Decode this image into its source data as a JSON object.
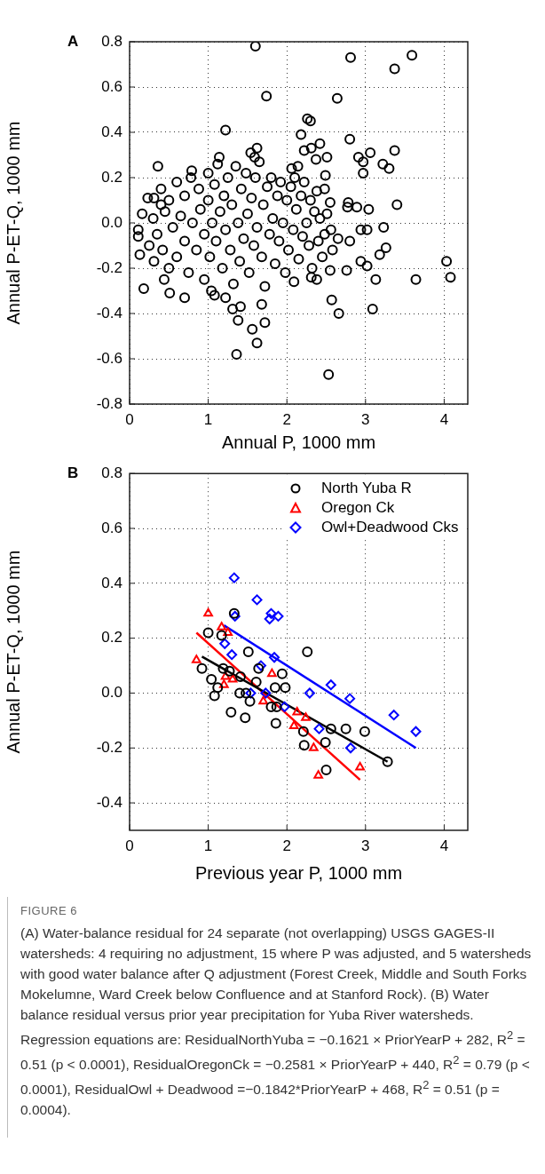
{
  "chart_data": [
    {
      "type": "scatter",
      "title": "A",
      "xlabel": "Annual P, 1000 mm",
      "ylabel": "Annual P-ET-Q, 1000 mm",
      "color": "#000000",
      "marker": "circle",
      "grid": true,
      "legend": false,
      "xlim": [
        0,
        4.3
      ],
      "xticks": [
        0,
        1,
        2,
        3,
        4
      ],
      "ylim": [
        -0.8,
        0.8
      ],
      "yticks": [
        -0.8,
        -0.6,
        -0.4,
        -0.2,
        {
          "value": 0,
          "label": "0.0"
        },
        0.2,
        0.4,
        0.6,
        0.8
      ],
      "x": [
        0.25,
        0.3,
        0.35,
        0.4,
        0.42,
        0.45,
        0.5,
        0.5,
        0.55,
        0.6,
        0.6,
        0.65,
        0.7,
        0.7,
        0.75,
        0.78,
        0.8,
        0.85,
        0.88,
        0.9,
        0.95,
        0.95,
        1.0,
        1.0,
        1.02,
        1.05,
        1.08,
        1.1,
        1.12,
        1.15,
        1.18,
        1.2,
        1.22,
        1.25,
        1.28,
        1.3,
        1.32,
        1.35,
        1.38,
        1.4,
        1.42,
        1.45,
        1.48,
        1.5,
        1.52,
        1.55,
        1.58,
        1.6,
        1.62,
        1.65,
        1.68,
        1.7,
        1.72,
        1.75,
        1.78,
        1.8,
        1.82,
        1.85,
        1.88,
        1.9,
        1.92,
        1.95,
        1.98,
        2.0,
        2.02,
        2.05,
        2.08,
        2.1,
        2.12,
        2.15,
        2.18,
        2.2,
        2.22,
        2.25,
        2.28,
        2.3,
        2.32,
        2.35,
        2.38,
        2.4,
        2.42,
        2.45,
        1.6,
        1.74,
        1.22,
        1.54,
        1.62,
        1.59,
        0.36,
        0.79,
        1.14,
        0.18,
        0.51,
        0.7,
        1.22,
        1.31,
        1.41,
        1.38,
        1.56,
        1.72,
        1.62,
        1.36,
        1.04,
        1.08,
        1.68,
        0.11,
        0.11,
        0.16,
        0.23,
        0.31,
        0.4,
        0.31,
        0.13,
        0.44,
        3.59,
        3.37,
        2.81,
        2.64,
        2.26,
        2.3,
        2.18,
        2.8,
        3.37,
        3.06,
        2.91,
        2.97,
        2.97,
        3.22,
        3.3,
        3.4,
        3.04,
        2.89,
        3.23,
        3.02,
        2.94,
        2.8,
        3.26,
        3.18,
        2.94,
        3.02,
        3.13,
        2.76,
        2.55,
        2.31,
        2.38,
        2.09,
        2.57,
        2.66,
        3.09,
        2.53,
        3.64,
        4.03,
        4.08,
        2.78,
        2.77,
        2.58,
        2.65,
        2.48,
        2.56,
        2.51,
        2.55,
        2.48,
        2.49,
        2.37,
        2.42,
        2.31,
        2.22,
        2.51,
        2.06,
        2.14
      ],
      "values": [
        -0.1,
        0.02,
        -0.05,
        0.15,
        -0.12,
        0.05,
        -0.2,
        0.1,
        -0.02,
        0.18,
        -0.15,
        0.03,
        -0.08,
        0.12,
        -0.22,
        0.2,
        0.0,
        -0.12,
        0.15,
        0.06,
        -0.05,
        -0.25,
        0.22,
        0.1,
        -0.15,
        0.0,
        0.17,
        -0.08,
        0.26,
        0.05,
        -0.2,
        0.12,
        -0.03,
        0.2,
        -0.12,
        0.08,
        -0.27,
        0.25,
        0.0,
        -0.17,
        0.15,
        -0.07,
        0.22,
        0.04,
        -0.22,
        0.11,
        -0.1,
        0.2,
        -0.02,
        0.27,
        -0.15,
        0.08,
        -0.28,
        0.16,
        -0.05,
        0.2,
        0.02,
        -0.18,
        0.12,
        -0.08,
        0.18,
        0.0,
        -0.22,
        0.1,
        -0.12,
        0.16,
        -0.03,
        0.2,
        0.06,
        -0.16,
        0.12,
        -0.06,
        0.18,
        0.0,
        -0.1,
        0.1,
        -0.2,
        0.05,
        0.14,
        -0.08,
        0.02,
        -0.15,
        0.78,
        0.56,
        0.41,
        0.31,
        0.33,
        0.29,
        0.25,
        0.23,
        0.29,
        -0.29,
        -0.31,
        -0.33,
        -0.33,
        -0.38,
        -0.37,
        -0.43,
        -0.47,
        -0.44,
        -0.53,
        -0.58,
        -0.3,
        -0.32,
        -0.36,
        -0.03,
        -0.06,
        0.04,
        0.11,
        0.11,
        0.08,
        -0.17,
        -0.14,
        -0.25,
        0.74,
        0.68,
        0.73,
        0.55,
        0.46,
        0.45,
        0.39,
        0.37,
        0.32,
        0.31,
        0.29,
        0.27,
        0.22,
        0.26,
        0.24,
        0.08,
        0.06,
        0.07,
        -0.02,
        -0.03,
        -0.03,
        -0.08,
        -0.11,
        -0.14,
        -0.17,
        -0.19,
        -0.25,
        -0.21,
        -0.21,
        -0.24,
        -0.25,
        -0.26,
        -0.34,
        -0.4,
        -0.38,
        -0.67,
        -0.25,
        -0.17,
        -0.24,
        0.09,
        0.07,
        -0.12,
        -0.07,
        -0.05,
        -0.03,
        0.04,
        0.09,
        0.15,
        0.21,
        0.28,
        0.35,
        0.33,
        0.32,
        0.29,
        0.24,
        0.25
      ]
    },
    {
      "type": "scatter",
      "title": "B",
      "xlabel": "Previous year P, 1000 mm",
      "ylabel": "Annual P-ET-Q, 1000 mm",
      "grid": true,
      "legend": "top right",
      "xlim": [
        0,
        4.3
      ],
      "xticks": [
        0,
        1,
        2,
        3,
        4
      ],
      "ylim": [
        -0.5,
        0.8
      ],
      "yticks": [
        -0.4,
        -0.2,
        {
          "value": 0,
          "label": "0.0"
        },
        0.2,
        0.4,
        0.6,
        0.8
      ],
      "series": [
        {
          "name": "North Yuba R",
          "type": "scatter",
          "marker": "circle",
          "color": "#000000",
          "x": [
            1.33,
            1.0,
            1.17,
            1.51,
            0.92,
            1.19,
            1.27,
            1.04,
            1.12,
            1.08,
            1.41,
            1.4,
            1.48,
            1.53,
            1.61,
            1.64,
            1.85,
            1.94,
            1.98,
            1.8,
            1.87,
            1.29,
            1.47,
            1.86,
            2.26,
            2.21,
            2.22,
            2.56,
            2.75,
            2.99,
            2.49,
            2.5,
            3.28
          ],
          "values": [
            0.29,
            0.22,
            0.21,
            0.15,
            0.09,
            0.09,
            0.08,
            0.05,
            0.02,
            -0.01,
            0.06,
            0.0,
            0.0,
            -0.03,
            0.04,
            0.09,
            0.02,
            0.07,
            0.02,
            -0.05,
            -0.05,
            -0.07,
            -0.09,
            -0.11,
            0.15,
            -0.14,
            -0.19,
            -0.13,
            -0.13,
            -0.14,
            -0.18,
            -0.28,
            -0.25
          ]
        },
        {
          "name": "Oregon Ck",
          "type": "scatter",
          "marker": "triangle",
          "color": "#ff0000",
          "x": [
            1.0,
            0.85,
            1.17,
            1.25,
            1.22,
            1.31,
            1.2,
            1.81,
            1.7,
            2.13,
            2.24,
            2.09,
            2.34,
            2.4,
            2.93
          ],
          "values": [
            0.29,
            0.12,
            0.24,
            0.22,
            0.06,
            0.05,
            0.03,
            0.07,
            -0.03,
            -0.07,
            -0.09,
            -0.12,
            -0.2,
            -0.3,
            -0.27
          ]
        },
        {
          "name": "Owl+Deadwood Cks",
          "type": "scatter",
          "marker": "diamond",
          "color": "#0000ff",
          "x": [
            1.33,
            1.62,
            1.34,
            1.78,
            1.8,
            1.89,
            1.21,
            1.3,
            1.84,
            1.67,
            1.54,
            1.73,
            1.97,
            2.29,
            2.56,
            2.8,
            2.41,
            2.81,
            3.36,
            3.64
          ],
          "values": [
            0.42,
            0.34,
            0.28,
            0.27,
            0.29,
            0.28,
            0.18,
            0.14,
            0.13,
            0.1,
            0.0,
            0.0,
            -0.05,
            0.0,
            0.03,
            -0.02,
            -0.13,
            -0.2,
            -0.08,
            -0.14
          ]
        },
        {
          "type": "line",
          "color": "#000000",
          "x": [
            0.92,
            3.28
          ],
          "values": [
            0.133,
            -0.25
          ]
        },
        {
          "type": "line",
          "color": "#ff0000",
          "x": [
            0.85,
            2.93
          ],
          "values": [
            0.22,
            -0.316
          ]
        },
        {
          "type": "line",
          "color": "#0000ff",
          "x": [
            1.2,
            3.64
          ],
          "values": [
            0.247,
            -0.2
          ]
        }
      ],
      "annotations": [
        "FIGURE 6",
        "(A) Water-balance residual for 24 separate (not overlapping) USGS GAGES-II watersheds: 4 requiring no adjustment, 15 where P was adjusted, and 5 watersheds with good water balance after Q adjustment (Forest Creek, Middle and South Forks Mokelumne, Ward Creek below Confluence and at Stanford Rock). (B) Water balance residual versus prior year precipitation for Yuba River watersheds. Regression equations are: ResidualNorthYuba = −0.1621 × PriorYearP + 282, R$^{2}$ = 0.51 (p < 0.0001), ResidualOregonCk = −0.2581 × PriorYearP + 440, R$^{2}$ = 0.79 (p < 0.0001), ResidualOwl + Deadwood =−0.1842*PriorYearP + 468, R$^{2}$ = 0.51 (p = 0.0004)."
      ]
    }
  ]
}
